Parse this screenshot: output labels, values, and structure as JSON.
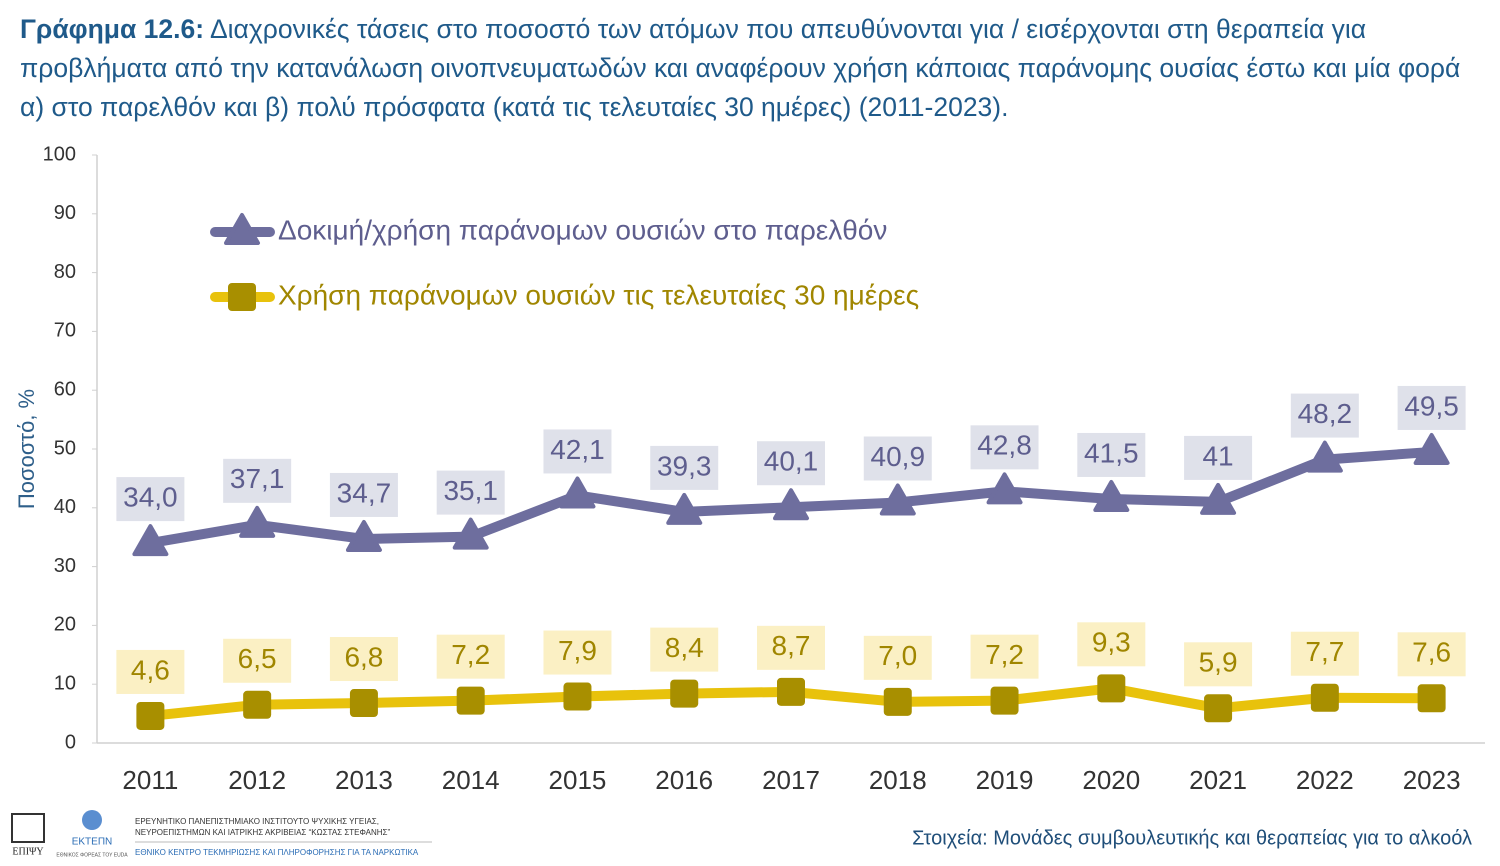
{
  "chart_data": {
    "type": "line",
    "title_label": "Γράφημα 12.6:",
    "title": "Διαχρονικές τάσεις στο ποσοστό των ατόμων που απευθύνονται για / εισέρχονται στη θεραπεία για προβλήματα από την κατανάλωση οινοπνευματωδών και αναφέρουν χρήση κάποιας παράνομης ουσίας έστω και μία φορά α) στο παρελθόν και β) πολύ πρόσφατα (κατά τις τελευταίες 30 ημέρες) (2011-2023).",
    "y_label": "Ποσοστό, %",
    "categories": [
      "2011",
      "2012",
      "2013",
      "2014",
      "2015",
      "2016",
      "2017",
      "2018",
      "2019",
      "2020",
      "2021",
      "2022",
      "2023"
    ],
    "series": [
      {
        "name": "Δοκιμή/χρήση παράνομων ουσιών στο παρελθόν",
        "color": "#6e6e9e",
        "label_color": "#5e5e8e",
        "label_box": "#dfe1ea",
        "marker": "triangle",
        "values": [
          34.0,
          37.1,
          34.7,
          35.1,
          42.1,
          39.3,
          40.1,
          40.9,
          42.8,
          41.5,
          41,
          48.2,
          49.5
        ],
        "value_labels": [
          "34,0",
          "37,1",
          "34,7",
          "35,1",
          "42,1",
          "39,3",
          "40,1",
          "40,9",
          "42,8",
          "41,5",
          "41",
          "48,2",
          "49,5"
        ]
      },
      {
        "name": "Χρήση παράνομων ουσιών τις τελευταίες 30 ημέρες",
        "color": "#e8c20c",
        "marker_color": "#a88f00",
        "label_color": "#a08600",
        "label_box": "#fbf0c4",
        "marker": "square",
        "values": [
          4.6,
          6.5,
          6.8,
          7.2,
          7.9,
          8.4,
          8.7,
          7.0,
          7.2,
          9.3,
          5.9,
          7.7,
          7.6
        ],
        "value_labels": [
          "4,6",
          "6,5",
          "6,8",
          "7,2",
          "7,9",
          "8,4",
          "8,7",
          "7,0",
          "7,2",
          "9,3",
          "5,9",
          "7,7",
          "7,6"
        ]
      }
    ],
    "ylim": [
      0,
      100
    ],
    "yticks": [
      0,
      10,
      20,
      30,
      40,
      50,
      60,
      70,
      80,
      90,
      100
    ],
    "grid": false,
    "legend": "top-left"
  },
  "footer": {
    "source": "Στοιχεία: Μονάδες συμβουλευτικής και θεραπείας για το αλκοόλ",
    "logo_left": "ΕΠΙΨΥ",
    "logo_mid": "ΕΚΤΕΠΝ",
    "logo_mid_sub": "ΕΘΝΙΚΟΣ ΦΟΡΕΑΣ ΤΟΥ EUDA",
    "institute_line1": "ΕΡΕΥΝΗΤΙΚΟ ΠΑΝΕΠΙΣΤΗΜΙΑΚΟ ΙΝΣΤΙΤΟΥΤΟ ΨΥΧΙΚΗΣ ΥΓΕΙΑΣ,",
    "institute_line2": "ΝΕΥΡΟΕΠΙΣΤΗΜΩΝ ΚΑΙ ΙΑΤΡΙΚΗΣ ΑΚΡΙΒΕΙΑΣ “ΚΩΣΤΑΣ ΣΤΕΦΑΝΗΣ”",
    "institute_line3": "ΕΘΝΙΚΟ ΚΕΝΤΡΟ ΤΕΚΜΗΡΙΩΣΗΣ ΚΑΙ ΠΛΗΡΟΦΟΡΗΣΗΣ ΓΙΑ ΤΑ ΝΑΡΚΩΤΙΚΑ"
  }
}
